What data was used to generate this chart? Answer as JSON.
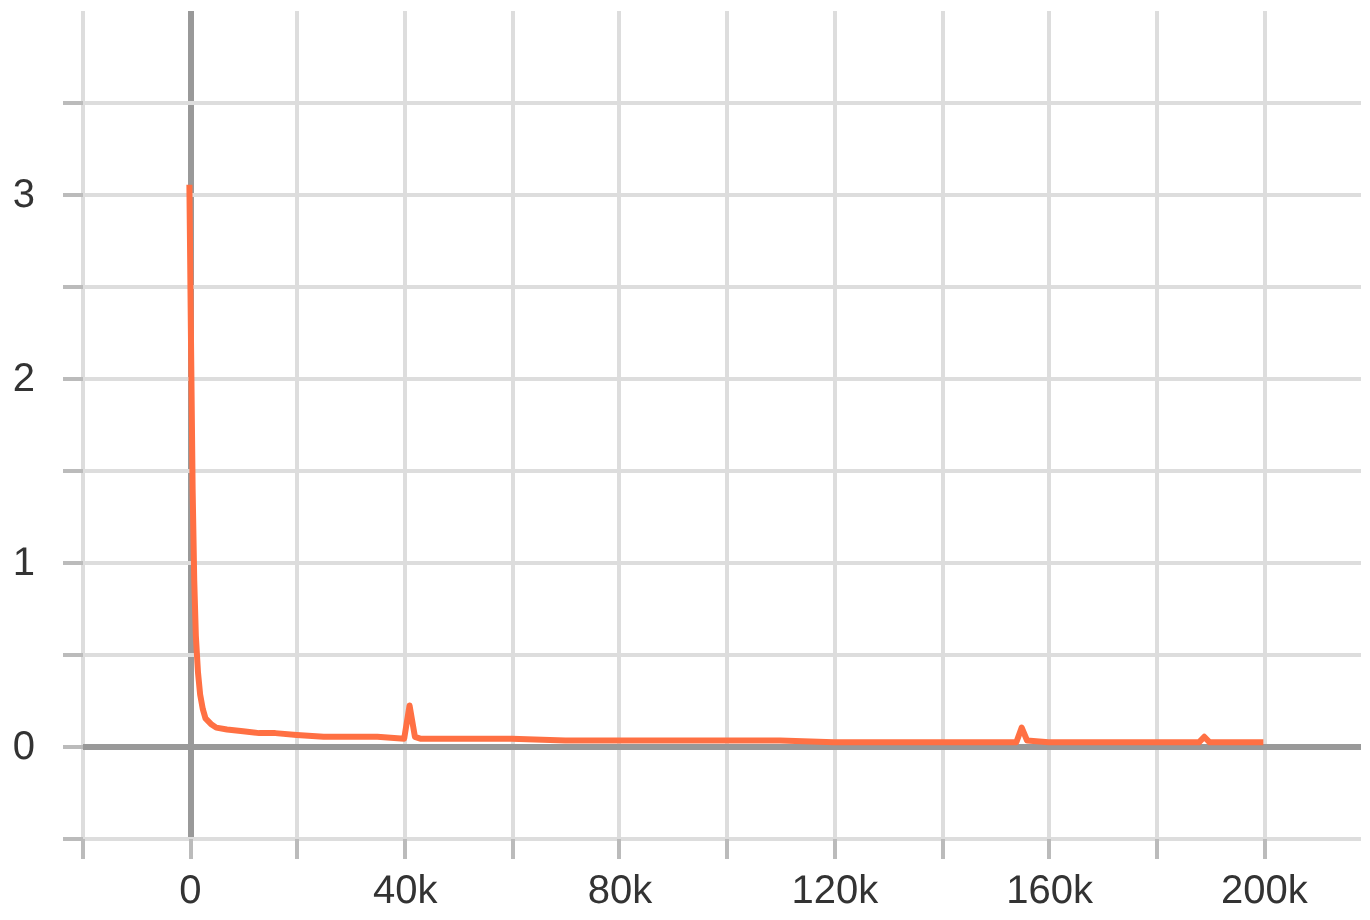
{
  "chart_data": {
    "type": "line",
    "xlim": [
      -20000,
      218000
    ],
    "ylim": [
      -0.5,
      4
    ],
    "xticks": [
      {
        "value": -20000,
        "label": null
      },
      0,
      {
        "value": 20000,
        "label": null
      },
      {
        "value": 40000,
        "label": "40k"
      },
      {
        "value": 60000,
        "label": null
      },
      {
        "value": 80000,
        "label": "80k"
      },
      {
        "value": 100000,
        "label": null
      },
      {
        "value": 120000,
        "label": "120k"
      },
      {
        "value": 140000,
        "label": null
      },
      {
        "value": 160000,
        "label": "160k"
      },
      {
        "value": 180000,
        "label": null
      },
      {
        "value": 200000,
        "label": "200k"
      }
    ],
    "yticks": [
      {
        "value": -0.5,
        "label": null
      },
      0,
      {
        "value": 0.5,
        "label": null
      },
      1,
      {
        "value": 1.5,
        "label": null
      },
      2,
      {
        "value": 2.5,
        "label": null
      },
      3,
      {
        "value": 3.5,
        "label": null
      }
    ],
    "grid": true,
    "line_style": "solid",
    "series": [
      {
        "color": "#ff7043",
        "x": [
          0,
          300,
          600,
          900,
          1200,
          1600,
          2000,
          2500,
          3000,
          4000,
          5000,
          7000,
          10000,
          13000,
          16000,
          20000,
          25000,
          30000,
          35000,
          40000,
          41000,
          42000,
          43000,
          50000,
          60000,
          70000,
          80000,
          90000,
          100000,
          110000,
          120000,
          130000,
          140000,
          150000,
          154000,
          155000,
          156000,
          160000,
          170000,
          180000,
          188000,
          189000,
          190000,
          200000
        ],
        "values": [
          3.05,
          2.2,
          1.4,
          0.9,
          0.6,
          0.4,
          0.28,
          0.2,
          0.15,
          0.12,
          0.1,
          0.09,
          0.08,
          0.07,
          0.07,
          0.06,
          0.05,
          0.05,
          0.05,
          0.04,
          0.22,
          0.05,
          0.04,
          0.04,
          0.04,
          0.03,
          0.03,
          0.03,
          0.03,
          0.03,
          0.02,
          0.02,
          0.02,
          0.02,
          0.02,
          0.1,
          0.03,
          0.02,
          0.02,
          0.02,
          0.02,
          0.05,
          0.02,
          0.02
        ]
      }
    ]
  }
}
